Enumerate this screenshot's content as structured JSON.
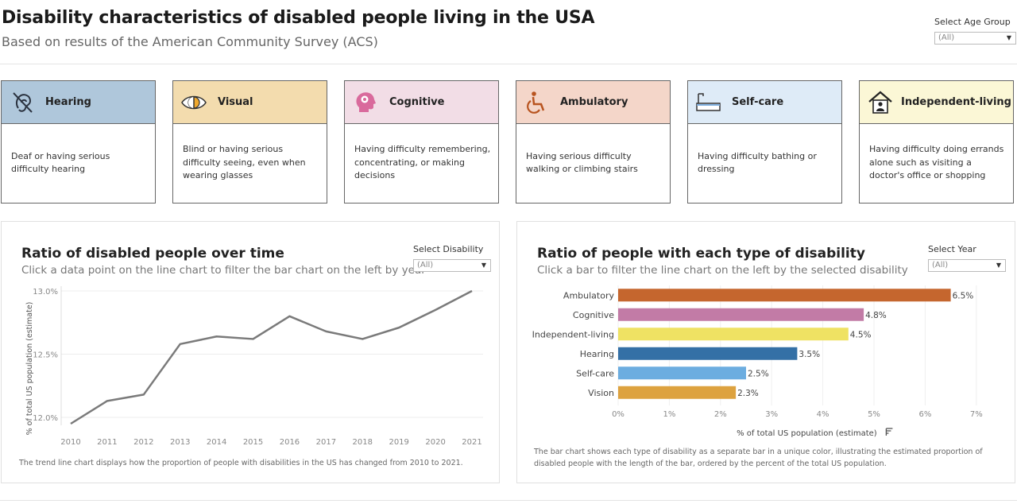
{
  "header": {
    "title": "Disability characteristics of disabled people living in the USA",
    "subtitle": "Based on results of the American Community Survey (ACS)",
    "age_filter": {
      "label": "Select Age Group",
      "value": "(All)"
    }
  },
  "cards": [
    {
      "name": "Hearing",
      "description": "Deaf or having serious difficulty hearing",
      "color": "#afc7db",
      "icon": "hearing-icon"
    },
    {
      "name": "Visual",
      "description": "Blind or having serious difficulty seeing, even when wearing glasses",
      "color": "#f3dcae",
      "icon": "eye-icon"
    },
    {
      "name": "Cognitive",
      "description": "Having difficulty remembering, concentrating, or making decisions",
      "color": "#f2dde6",
      "icon": "brain-icon"
    },
    {
      "name": "Ambulatory",
      "description": "Having serious difficulty walking or climbing stairs",
      "color": "#f4d6c9",
      "icon": "wheelchair-icon"
    },
    {
      "name": "Self-care",
      "description": "Having difficulty bathing or dressing",
      "color": "#deebf7",
      "icon": "bathtub-icon"
    },
    {
      "name": "Independent-living",
      "description": "Having difficulty doing errands alone such as visiting a doctor's office or shopping",
      "color": "#fbf7d6",
      "icon": "home-person-icon"
    }
  ],
  "left_panel": {
    "title": "Ratio of disabled people over time",
    "subtitle": "Click a data point on the line chart to filter the bar chart on the left by year",
    "filter": {
      "label": "Select Disability",
      "value": "(All)"
    },
    "note": "The trend line chart displays how the proportion of people with disabilities in the US has changed from 2010 to 2021."
  },
  "right_panel": {
    "title": "Ratio of people with each type of disability",
    "subtitle": "Click a bar to filter the line chart on the left by the selected disability",
    "filter": {
      "label": "Select Year",
      "value": "(All)"
    },
    "note": "The bar chart shows each type of disability as a separate bar in a unique color, illustrating the estimated proportion of disabled people with the length of the bar, ordered by the percent of the total US population.",
    "sort_icon": "sort-descending-icon"
  },
  "chart_data": [
    {
      "type": "line",
      "x": [
        2010,
        2011,
        2012,
        2013,
        2014,
        2015,
        2016,
        2017,
        2018,
        2019,
        2020,
        2021
      ],
      "x_tick_labels": [
        "2010",
        "2011",
        "2012",
        "2013",
        "2014",
        "2015",
        "2016",
        "2017",
        "2018",
        "2019",
        "2020",
        "2021"
      ],
      "values": [
        11.95,
        12.13,
        12.18,
        12.58,
        12.64,
        12.62,
        12.8,
        12.68,
        12.62,
        12.71,
        12.85,
        13.0
      ],
      "ylabel": "% of total US population (estimate)",
      "ylim": [
        11.95,
        13.0
      ],
      "y_ticks": [
        12.0,
        12.5,
        13.0
      ],
      "y_tick_labels": [
        "12.0%",
        "12.5%",
        "13.0%"
      ],
      "line_color": "#7a7a7a",
      "grid": true
    },
    {
      "type": "bar",
      "orientation": "horizontal",
      "categories": [
        "Ambulatory",
        "Cognitive",
        "Independent-living",
        "Hearing",
        "Self-care",
        "Vision"
      ],
      "values": [
        6.5,
        4.8,
        4.5,
        3.5,
        2.5,
        2.3
      ],
      "value_labels": [
        "6.5%",
        "4.8%",
        "4.5%",
        "3.5%",
        "2.5%",
        "2.3%"
      ],
      "colors": [
        "#c5662e",
        "#c27ba6",
        "#efe263",
        "#3470a6",
        "#6cade0",
        "#dda23f"
      ],
      "xlabel": "% of total US population (estimate)",
      "xlim": [
        0,
        7.5
      ],
      "x_ticks": [
        0,
        1,
        2,
        3,
        4,
        5,
        6,
        7
      ],
      "x_tick_labels": [
        "0%",
        "1%",
        "2%",
        "3%",
        "4%",
        "5%",
        "6%",
        "7%"
      ],
      "grid": true
    }
  ]
}
